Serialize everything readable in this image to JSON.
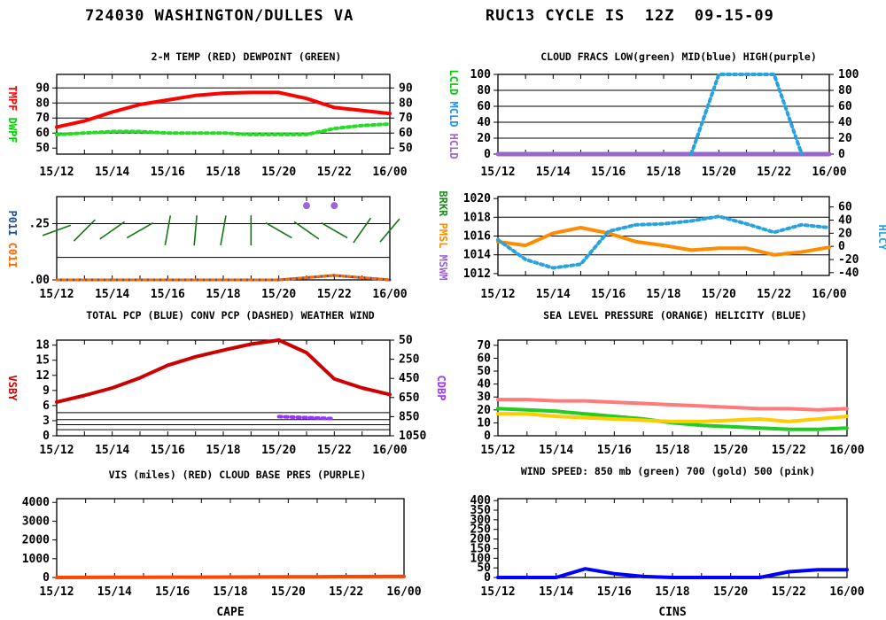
{
  "header": {
    "station": "724030 WASHINGTON/DULLES VA",
    "cycle": "RUC13 CYCLE IS  12Z  09-15-09"
  },
  "time_labels": [
    "15/12",
    "15/14",
    "15/16",
    "15/18",
    "15/20",
    "15/22",
    "16/00"
  ],
  "chart_data": [
    {
      "id": "temp-dewpoint",
      "type": "line",
      "title": "2-M TEMP (RED) DEWPOINT (GREEN)",
      "ylabel_left": [
        {
          "text": "TMPF",
          "color": "#ff0000"
        },
        {
          "text": "DWPF",
          "color": "#00cc00"
        }
      ],
      "ylim": [
        46,
        99
      ],
      "left_ticks": [
        50,
        60,
        70,
        80,
        90
      ],
      "right_ticks": [
        50,
        60,
        70,
        80,
        90
      ],
      "grid_y": [
        60,
        70,
        80,
        90
      ],
      "x": [
        0,
        1,
        2,
        3,
        4,
        5,
        6,
        7,
        8,
        9,
        10,
        11,
        12
      ],
      "series": [
        {
          "name": "TMPF",
          "color": "#ff0000",
          "style": "solid",
          "width": 4,
          "values": [
            64,
            68,
            74,
            79,
            82,
            85,
            86.5,
            87,
            87,
            83,
            77,
            75,
            73
          ]
        },
        {
          "name": "DWPF",
          "color": "#22dd22",
          "style": "dotted",
          "width": 4,
          "values": [
            59,
            60,
            61,
            61,
            60,
            60,
            60,
            59,
            59,
            59,
            63,
            65,
            66
          ]
        }
      ]
    },
    {
      "id": "precip-wind",
      "type": "line",
      "title": "TOTAL PCP (BLUE) CONV PCP (DASHED) WEATHER WIND",
      "ylabel_left": [
        {
          "text": "P01I",
          "color": "#1f4e8c"
        },
        {
          "text": "C01I",
          "color": "#ff6600"
        }
      ],
      "ylim": [
        0,
        0.37
      ],
      "left_tick_values": [
        0,
        0.25
      ],
      "left_tick_labels": [
        ".00",
        ".25"
      ],
      "grid_y": [
        0.1,
        0.25
      ],
      "series": [
        {
          "name": "P01I",
          "color": "#1f4e8c",
          "style": "solid",
          "width": 3,
          "x": [
            0,
            8,
            9,
            10,
            11,
            12
          ],
          "values": [
            0,
            0,
            0.01,
            0.02,
            0.01,
            0
          ]
        },
        {
          "name": "C01I",
          "color": "#ff6600",
          "style": "dotted",
          "width": 3,
          "x": [
            0,
            8,
            9,
            10,
            11,
            12
          ],
          "values": [
            0,
            0,
            0.01,
            0.02,
            0.01,
            0
          ]
        }
      ],
      "weather_points": [
        {
          "x": 9,
          "y": 0.33
        },
        {
          "x": 10,
          "y": 0.33
        }
      ],
      "wind_barbs": [
        {
          "x": 0,
          "y": 0.22,
          "dir": 250
        },
        {
          "x": 1,
          "y": 0.22,
          "dir": 225
        },
        {
          "x": 2,
          "y": 0.22,
          "dir": 235
        },
        {
          "x": 3,
          "y": 0.22,
          "dir": 240
        },
        {
          "x": 4,
          "y": 0.22,
          "dir": 190
        },
        {
          "x": 5,
          "y": 0.22,
          "dir": 185
        },
        {
          "x": 6,
          "y": 0.22,
          "dir": 190
        },
        {
          "x": 7,
          "y": 0.22,
          "dir": 180
        },
        {
          "x": 8,
          "y": 0.22,
          "dir": 300
        },
        {
          "x": 9,
          "y": 0.22,
          "dir": 305
        },
        {
          "x": 10,
          "y": 0.22,
          "dir": 300
        },
        {
          "x": 11,
          "y": 0.22,
          "dir": 215
        },
        {
          "x": 12,
          "y": 0.22,
          "dir": 220
        }
      ]
    },
    {
      "id": "vis-cloudbase",
      "type": "line",
      "title": "VIS (miles) (RED)     CLOUD BASE PRES (PURPLE)",
      "ylabel_left": [
        {
          "text": "VSBY",
          "color": "#cc0000"
        }
      ],
      "ylabel_right": [
        {
          "text": "CDBP",
          "color": "#9933ff"
        }
      ],
      "ylim": [
        0,
        19
      ],
      "left_ticks": [
        0,
        3,
        6,
        9,
        12,
        15,
        18
      ],
      "right_ticks": [
        {
          "label": "50",
          "y": 19
        },
        {
          "label": "250",
          "y": 15.2
        },
        {
          "label": "450",
          "y": 11.4
        },
        {
          "label": "650",
          "y": 7.6
        },
        {
          "label": "850",
          "y": 3.8
        },
        {
          "label": "1050",
          "y": 0
        }
      ],
      "grid_y": [
        1.2,
        2.2,
        3.2,
        4.6
      ],
      "series": [
        {
          "name": "VSBY",
          "color": "#cc0000",
          "style": "solid",
          "width": 4,
          "values": [
            6.7,
            8,
            9.5,
            11.5,
            14,
            15.7,
            17,
            18.2,
            19,
            16.5,
            11.3,
            9.5,
            8.2
          ]
        },
        {
          "name": "CDBP",
          "color": "#9933ff",
          "style": "dotted",
          "width": 4,
          "x": [
            8,
            9,
            10
          ],
          "values": [
            3.8,
            3.6,
            3.4
          ]
        }
      ]
    },
    {
      "id": "cape",
      "type": "line",
      "title": "",
      "xlabel": "CAPE",
      "ylim": [
        0,
        4200
      ],
      "left_ticks": [
        0,
        1000,
        2000,
        3000,
        4000
      ],
      "series": [
        {
          "name": "CAPE",
          "color": "#ff4500",
          "style": "solid",
          "width": 4,
          "values": [
            0,
            5,
            10,
            15,
            20,
            20,
            25,
            30,
            35,
            40,
            45,
            50,
            60
          ]
        }
      ]
    },
    {
      "id": "cloud-fracs",
      "type": "line",
      "title": "CLOUD FRACS LOW(green) MID(blue) HIGH(purple)",
      "ylabel_left": [
        {
          "text": "LCLD",
          "color": "#00cc00"
        },
        {
          "text": "MCLD",
          "color": "#1e90ff"
        },
        {
          "text": "HCLD",
          "color": "#9966cc"
        }
      ],
      "ylim": [
        0,
        100
      ],
      "left_ticks": [
        0,
        20,
        40,
        60,
        80,
        100
      ],
      "right_ticks": [
        0,
        20,
        40,
        60,
        80,
        100
      ],
      "grid_y": [
        20,
        40,
        60,
        80,
        100
      ],
      "series": [
        {
          "name": "HCLD",
          "color": "#9966cc",
          "style": "solid",
          "width": 5,
          "values": [
            0,
            0,
            0,
            0,
            0,
            0,
            0,
            0,
            0,
            0,
            0,
            0,
            0
          ]
        },
        {
          "name": "MCLD",
          "color": "#29a3e0",
          "style": "dotted",
          "width": 4,
          "x": [
            7,
            8,
            9,
            10,
            11
          ],
          "values": [
            0,
            100,
            100,
            100,
            0
          ]
        }
      ]
    },
    {
      "id": "slp-helicity",
      "type": "line",
      "title": "SEA LEVEL PRESSURE (ORANGE) HELICITY (BLUE)",
      "ylabel_left": [
        {
          "text": "BRKR",
          "color": "#228b22"
        },
        {
          "text": "PMSL",
          "color": "#ff8c00"
        },
        {
          "text": "MSWM",
          "color": "#9966cc"
        }
      ],
      "ylabel_right": [
        {
          "text": "HLCY",
          "color": "#29a3e0"
        }
      ],
      "ylim": [
        1011.8,
        1020.2
      ],
      "left_ticks": [
        1012,
        1014,
        1016,
        1018,
        1020
      ],
      "right_ticks": [
        {
          "label": "60",
          "y": 1019.1
        },
        {
          "label": "40",
          "y": 1017.7
        },
        {
          "label": "20",
          "y": 1016.3
        },
        {
          "label": "0",
          "y": 1014.9
        },
        {
          "label": "-20",
          "y": 1013.5
        },
        {
          "label": "-40",
          "y": 1012.1
        }
      ],
      "grid_y": [
        1014,
        1016,
        1018
      ],
      "series": [
        {
          "name": "PMSL",
          "color": "#ff8c00",
          "style": "solid",
          "width": 4,
          "values": [
            1015.4,
            1015.0,
            1016.3,
            1016.9,
            1016.3,
            1015.4,
            1015.0,
            1014.5,
            1014.7,
            1014.7,
            1014.0,
            1014.3,
            1014.8
          ]
        },
        {
          "name": "HLCY",
          "color": "#29a3e0",
          "style": "dotted",
          "width": 4,
          "values": [
            1015.6,
            1013.5,
            1012.6,
            1013.0,
            1016.5,
            1017.2,
            1017.3,
            1017.6,
            1018.1,
            1017.3,
            1016.4,
            1017.2,
            1016.9
          ]
        }
      ]
    },
    {
      "id": "wind-speed",
      "type": "line",
      "title": "WIND SPEED: 850 mb (green) 700 (gold) 500 (pink)",
      "ylim": [
        0,
        74
      ],
      "left_ticks": [
        0,
        10,
        20,
        30,
        40,
        50,
        60,
        70
      ],
      "grid_y": [],
      "series": [
        {
          "name": "500 mb",
          "color": "#ff7b7b",
          "style": "solid",
          "width": 4,
          "values": [
            28,
            28,
            27,
            27,
            26,
            25,
            24,
            23,
            22,
            21,
            21,
            20,
            21
          ]
        },
        {
          "name": "850 mb",
          "color": "#22cc22",
          "style": "solid",
          "width": 4,
          "values": [
            21,
            20,
            19,
            17,
            15,
            13,
            10,
            8,
            7,
            6,
            5,
            5,
            6
          ]
        },
        {
          "name": "700 mb",
          "color": "#ffcc00",
          "style": "solid",
          "width": 4,
          "values": [
            17,
            17,
            15,
            14,
            13,
            12,
            11,
            11,
            12,
            13,
            11,
            13,
            15
          ]
        }
      ]
    },
    {
      "id": "cins",
      "type": "line",
      "title": "",
      "xlabel": "CINS",
      "ylim": [
        0,
        410
      ],
      "left_ticks": [
        0,
        50,
        100,
        150,
        200,
        250,
        300,
        350,
        400
      ],
      "series": [
        {
          "name": "CINS",
          "color": "#0000ff",
          "style": "solid",
          "width": 4,
          "values": [
            0,
            0,
            0,
            45,
            20,
            5,
            0,
            0,
            0,
            0,
            30,
            40,
            40
          ]
        }
      ]
    }
  ]
}
